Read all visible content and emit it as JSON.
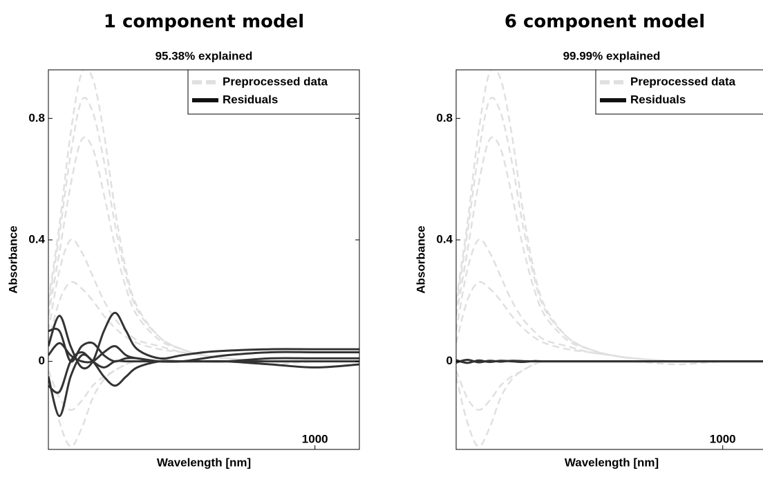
{
  "chart_data": [
    {
      "type": "line",
      "title": "1 component model",
      "subtitle": "95.38% explained",
      "xlabel": "Wavelength [nm]",
      "ylabel": "Absorbance",
      "x": [
        400,
        425,
        450,
        475,
        500,
        525,
        550,
        575,
        600,
        650,
        700,
        750,
        800,
        900,
        1000,
        1100
      ],
      "xlim": [
        400,
        1100
      ],
      "ylim": [
        -0.29,
        0.96
      ],
      "xticks": [
        1000
      ],
      "yticks": [
        0,
        0.4,
        0.8
      ],
      "legend": "upper right",
      "series": [
        {
          "name": "Preprocessed data",
          "color": "#e0e0e0",
          "dashed": true,
          "values": [
            [
              0.2,
              0.45,
              0.75,
              0.95,
              0.93,
              0.75,
              0.5,
              0.3,
              0.18,
              0.08,
              0.04,
              0.02,
              0.01,
              0.0,
              0.0,
              0.0
            ],
            [
              0.18,
              0.42,
              0.68,
              0.86,
              0.82,
              0.66,
              0.45,
              0.28,
              0.17,
              0.08,
              0.04,
              0.02,
              0.01,
              0.0,
              0.0,
              0.0
            ],
            [
              0.15,
              0.36,
              0.58,
              0.73,
              0.7,
              0.55,
              0.38,
              0.24,
              0.15,
              0.07,
              0.04,
              0.02,
              0.01,
              0.0,
              0.0,
              0.0
            ],
            [
              0.1,
              0.3,
              0.4,
              0.36,
              0.28,
              0.2,
              0.14,
              0.1,
              0.07,
              0.05,
              0.03,
              0.02,
              0.01,
              0.0,
              0.0,
              0.0
            ],
            [
              0.06,
              0.2,
              0.26,
              0.24,
              0.2,
              0.15,
              0.11,
              0.08,
              0.06,
              0.04,
              0.03,
              0.02,
              0.01,
              0.0,
              0.0,
              0.0
            ],
            [
              -0.05,
              -0.2,
              -0.28,
              -0.22,
              -0.12,
              -0.06,
              -0.03,
              -0.01,
              0.0,
              0.0,
              0.0,
              0.0,
              0.0,
              0.0,
              0.0,
              0.0
            ],
            [
              -0.03,
              -0.12,
              -0.16,
              -0.13,
              -0.08,
              -0.05,
              -0.03,
              -0.01,
              0.0,
              0.0,
              0.0,
              0.0,
              0.0,
              -0.01,
              0.0,
              0.0
            ]
          ]
        },
        {
          "name": "Residuals",
          "color": "#333333",
          "dashed": false,
          "values": [
            [
              0.05,
              0.15,
              0.05,
              -0.02,
              0.0,
              0.1,
              0.16,
              0.1,
              0.04,
              0.01,
              0.02,
              0.03,
              0.035,
              0.04,
              0.04,
              0.04
            ],
            [
              -0.05,
              -0.18,
              -0.05,
              0.02,
              0.0,
              -0.05,
              -0.08,
              -0.05,
              -0.02,
              0.0,
              0.0,
              0.0,
              0.0,
              0.0,
              0.0,
              0.0
            ],
            [
              0.1,
              0.1,
              0.0,
              0.05,
              0.06,
              0.02,
              0.0,
              0.01,
              0.01,
              0.0,
              0.0,
              0.01,
              0.02,
              0.03,
              0.03,
              0.03
            ],
            [
              -0.08,
              -0.1,
              0.0,
              0.03,
              0.0,
              -0.02,
              0.0,
              0.0,
              0.0,
              0.0,
              0.0,
              0.0,
              0.0,
              -0.01,
              -0.02,
              -0.01
            ],
            [
              0.02,
              0.06,
              0.02,
              0.0,
              0.0,
              0.03,
              0.05,
              0.02,
              0.01,
              0.0,
              0.0,
              0.0,
              0.0,
              0.01,
              0.01,
              0.01
            ]
          ]
        }
      ]
    },
    {
      "type": "line",
      "title": "6 component model",
      "subtitle": "99.99% explained",
      "xlabel": "Wavelength [nm]",
      "ylabel": "Absorbance",
      "x": [
        400,
        425,
        450,
        475,
        500,
        525,
        550,
        575,
        600,
        650,
        700,
        750,
        800,
        900,
        1000,
        1100
      ],
      "xlim": [
        400,
        1100
      ],
      "ylim": [
        -0.29,
        0.96
      ],
      "xticks": [
        1000
      ],
      "yticks": [
        0,
        0.4,
        0.8
      ],
      "legend": "upper right",
      "series": [
        {
          "name": "Preprocessed data",
          "color": "#e0e0e0",
          "dashed": true,
          "values": [
            [
              0.2,
              0.45,
              0.75,
              0.95,
              0.93,
              0.75,
              0.5,
              0.3,
              0.18,
              0.08,
              0.04,
              0.02,
              0.01,
              0.0,
              0.0,
              0.0
            ],
            [
              0.18,
              0.42,
              0.68,
              0.86,
              0.82,
              0.66,
              0.45,
              0.28,
              0.17,
              0.08,
              0.04,
              0.02,
              0.01,
              0.0,
              0.0,
              0.0
            ],
            [
              0.15,
              0.36,
              0.58,
              0.73,
              0.7,
              0.55,
              0.38,
              0.24,
              0.15,
              0.07,
              0.04,
              0.02,
              0.01,
              0.0,
              0.0,
              0.0
            ],
            [
              0.1,
              0.3,
              0.4,
              0.36,
              0.28,
              0.2,
              0.14,
              0.1,
              0.07,
              0.05,
              0.03,
              0.02,
              0.01,
              0.0,
              0.0,
              0.0
            ],
            [
              0.06,
              0.2,
              0.26,
              0.24,
              0.2,
              0.15,
              0.11,
              0.08,
              0.06,
              0.04,
              0.03,
              0.02,
              0.01,
              0.0,
              0.0,
              0.0
            ],
            [
              -0.05,
              -0.2,
              -0.28,
              -0.22,
              -0.12,
              -0.06,
              -0.03,
              -0.01,
              0.0,
              0.0,
              0.0,
              0.0,
              0.0,
              0.0,
              0.0,
              0.0
            ],
            [
              -0.03,
              -0.12,
              -0.16,
              -0.13,
              -0.08,
              -0.05,
              -0.03,
              -0.01,
              0.0,
              0.0,
              0.0,
              0.0,
              0.0,
              -0.01,
              0.0,
              0.0
            ]
          ]
        },
        {
          "name": "Residuals",
          "color": "#333333",
          "dashed": false,
          "values": [
            [
              0.004,
              -0.005,
              0.003,
              -0.002,
              0.002,
              0.0,
              -0.002,
              0.001,
              0.0,
              0.0,
              0.0,
              0.0,
              0.0,
              0.0,
              0.0,
              0.0
            ],
            [
              -0.004,
              0.005,
              -0.003,
              0.002,
              -0.001,
              0.002,
              0.001,
              0.0,
              0.0,
              0.0,
              0.0,
              0.0,
              0.0,
              0.0,
              0.0,
              0.0
            ]
          ]
        }
      ]
    }
  ]
}
